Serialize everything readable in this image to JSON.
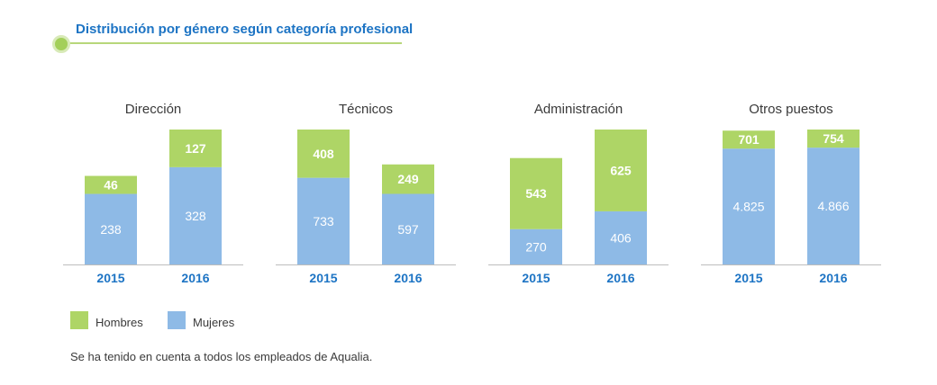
{
  "header": {
    "title": "Distribución por género según categoría profesional"
  },
  "colors": {
    "hombres": "#aed566",
    "mujeres": "#8ebae6",
    "year_label": "#1d74c4",
    "category_label": "#3a3a3a",
    "axis": "#bdbdbd",
    "accent_line": "#b7d77a"
  },
  "chart_data": [
    {
      "type": "bar",
      "stacked": true,
      "title": "Dirección",
      "categories": [
        "2015",
        "2016"
      ],
      "series": [
        {
          "name": "Mujeres",
          "values": [
            238,
            328
          ],
          "labels": [
            "238",
            "328"
          ]
        },
        {
          "name": "Hombres",
          "values": [
            46,
            127
          ],
          "labels": [
            "46",
            "127"
          ]
        }
      ]
    },
    {
      "type": "bar",
      "stacked": true,
      "title": "Técnicos",
      "categories": [
        "2015",
        "2016"
      ],
      "series": [
        {
          "name": "Mujeres",
          "values": [
            733,
            597
          ],
          "labels": [
            "733",
            "597"
          ]
        },
        {
          "name": "Hombres",
          "values": [
            408,
            249
          ],
          "labels": [
            "408",
            "249"
          ]
        }
      ]
    },
    {
      "type": "bar",
      "stacked": true,
      "title": "Administración",
      "categories": [
        "2015",
        "2016"
      ],
      "series": [
        {
          "name": "Mujeres",
          "values": [
            270,
            406
          ],
          "labels": [
            "270",
            "406"
          ]
        },
        {
          "name": "Hombres",
          "values": [
            543,
            625
          ],
          "labels": [
            "543",
            "625"
          ]
        }
      ]
    },
    {
      "type": "bar",
      "stacked": true,
      "title": "Otros puestos",
      "categories": [
        "2015",
        "2016"
      ],
      "series": [
        {
          "name": "Mujeres",
          "values": [
            4825,
            4866
          ],
          "labels": [
            "4.825",
            "4.866"
          ]
        },
        {
          "name": "Hombres",
          "values": [
            701,
            754
          ],
          "labels": [
            "701",
            "754"
          ]
        }
      ]
    }
  ],
  "legend": {
    "items": [
      {
        "label": "Hombres",
        "color": "#aed566"
      },
      {
        "label": "Mujeres",
        "color": "#8ebae6"
      }
    ]
  },
  "footnote": "Se ha tenido en cuenta a todos los empleados de Aqualia."
}
